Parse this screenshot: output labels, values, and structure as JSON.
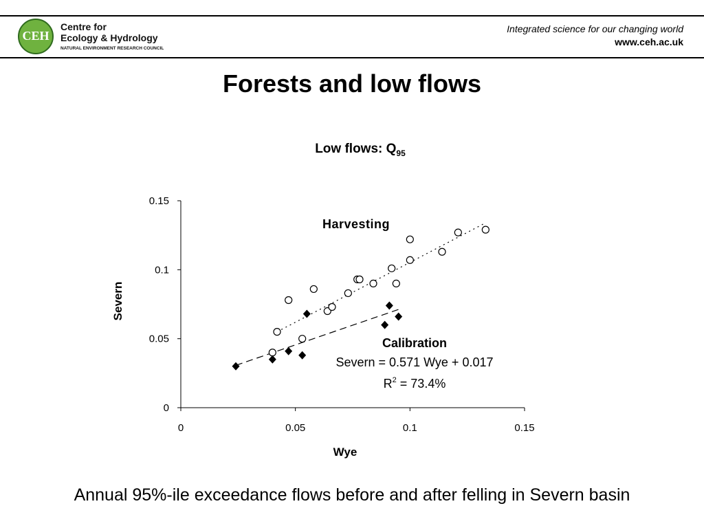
{
  "header": {
    "logo": {
      "initials": "CEH",
      "line1": "Centre for",
      "line2": "Ecology & Hydrology",
      "line3": "NATURAL ENVIRONMENT RESEARCH COUNCIL"
    },
    "tagline": "Integrated science for our changing world",
    "url": "www.ceh.ac.uk"
  },
  "page_title": "Forests and low flows",
  "caption": "Annual 95%-ile exceedance flows before and after felling in Severn basin",
  "chart_data": {
    "type": "scatter",
    "title": "Low flows: Q",
    "title_subscript": "95",
    "xlabel": "Wye",
    "ylabel": "Severn",
    "xlim": [
      0,
      0.15
    ],
    "ylim": [
      0,
      0.15
    ],
    "xticks": [
      "0",
      "0.05",
      "0.1",
      "0.15"
    ],
    "yticks": [
      "0",
      "0.05",
      "0.1",
      "0.15"
    ],
    "grid": false,
    "series": [
      {
        "name": "Harvesting",
        "marker": "open-circle",
        "color": "#000000",
        "points": [
          [
            0.04,
            0.04
          ],
          [
            0.042,
            0.055
          ],
          [
            0.047,
            0.078
          ],
          [
            0.053,
            0.05
          ],
          [
            0.058,
            0.086
          ],
          [
            0.064,
            0.07
          ],
          [
            0.066,
            0.073
          ],
          [
            0.073,
            0.083
          ],
          [
            0.077,
            0.093
          ],
          [
            0.078,
            0.093
          ],
          [
            0.084,
            0.09
          ],
          [
            0.092,
            0.101
          ],
          [
            0.094,
            0.09
          ],
          [
            0.1,
            0.122
          ],
          [
            0.1,
            0.107
          ],
          [
            0.114,
            0.113
          ],
          [
            0.121,
            0.127
          ],
          [
            0.133,
            0.129
          ]
        ],
        "trendline": {
          "style": "dotted",
          "from": [
            0.042,
            0.055
          ],
          "to": [
            0.133,
            0.134
          ]
        }
      },
      {
        "name": "Calibration",
        "marker": "filled-diamond",
        "color": "#000000",
        "points": [
          [
            0.024,
            0.03
          ],
          [
            0.04,
            0.035
          ],
          [
            0.047,
            0.041
          ],
          [
            0.053,
            0.038
          ],
          [
            0.055,
            0.068
          ],
          [
            0.089,
            0.06
          ],
          [
            0.091,
            0.074
          ],
          [
            0.095,
            0.066
          ]
        ],
        "trendline": {
          "style": "dashed",
          "from": [
            0.024,
            0.0307
          ],
          "to": [
            0.095,
            0.0712
          ]
        }
      }
    ],
    "annotations": {
      "harvesting_label": "Harvesting",
      "calibration_label": "Calibration",
      "equation": "Severn = 0.571 Wye + 0.017",
      "r2_prefix": "R",
      "r2_sup": "2",
      "r2_suffix": " = 73.4%"
    }
  }
}
